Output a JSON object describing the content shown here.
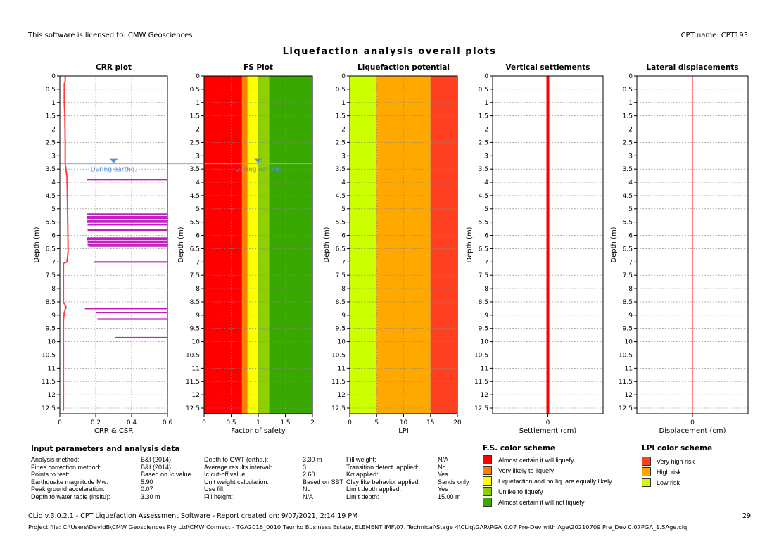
{
  "header": {
    "license": "This software is licensed to: CMW Geosciences",
    "cpt_name": "CPT name: CPT193"
  },
  "title": "Liquefaction analysis overall plots",
  "chart_data": [
    {
      "type": "line",
      "title": "CRR plot",
      "xlabel": "CRR & CSR",
      "ylabel": "Depth (m)",
      "xlim": [
        0,
        0.6
      ],
      "ylim": [
        0,
        12.5
      ],
      "xticks": [
        "0",
        "0.2",
        "0.4",
        "0.6"
      ],
      "grid": true,
      "water_table": {
        "depth": 3.3,
        "label": "During earthq."
      },
      "series": [
        {
          "name": "CSR",
          "color": "#ff4040",
          "points": [
            [
              0.03,
              0
            ],
            [
              0.03,
              0.2
            ],
            [
              0.025,
              0.3
            ],
            [
              0.025,
              1
            ],
            [
              0.028,
              1.5
            ],
            [
              0.03,
              2.5
            ],
            [
              0.03,
              3.3
            ],
            [
              0.04,
              3.8
            ],
            [
              0.042,
              4.5
            ],
            [
              0.044,
              5.5
            ],
            [
              0.046,
              6.6
            ],
            [
              0.04,
              7.0
            ],
            [
              0.02,
              7.05
            ],
            [
              0.02,
              8.5
            ],
            [
              0.035,
              8.7
            ],
            [
              0.025,
              8.9
            ],
            [
              0.02,
              9.2
            ],
            [
              0.02,
              12.6
            ]
          ]
        },
        {
          "name": "CRR",
          "color": "#c020c0",
          "segments": [
            [
              3.9,
              0.15
            ],
            [
              5.2,
              0.15
            ],
            [
              5.3,
              0.15
            ],
            [
              5.35,
              0.15
            ],
            [
              5.45,
              0.15
            ],
            [
              5.5,
              0.15
            ],
            [
              5.6,
              0.155
            ],
            [
              5.8,
              0.155
            ],
            [
              6.1,
              0.15
            ],
            [
              6.15,
              0.15
            ],
            [
              6.25,
              0.155
            ],
            [
              6.35,
              0.155
            ],
            [
              6.4,
              0.16
            ],
            [
              7.0,
              0.19
            ],
            [
              8.75,
              0.14
            ],
            [
              8.9,
              0.2
            ],
            [
              9.15,
              0.21
            ],
            [
              9.85,
              0.31
            ]
          ]
        }
      ]
    },
    {
      "type": "bar",
      "title": "FS Plot",
      "xlabel": "Factor of safety",
      "ylabel": "Depth (m)",
      "xlim": [
        0,
        2
      ],
      "ylim": [
        0,
        12.5
      ],
      "xticks": [
        "0",
        "0.5",
        "1",
        "1.5",
        "2"
      ],
      "grid": true,
      "water_table": {
        "depth": 3.3,
        "label": "During earthq."
      },
      "bands": [
        {
          "from": 0,
          "to": 0.7,
          "color": "#ff0000"
        },
        {
          "from": 0.7,
          "to": 0.8,
          "color": "#ff8000"
        },
        {
          "from": 0.8,
          "to": 1.0,
          "color": "#ffff00"
        },
        {
          "from": 1.0,
          "to": 1.2,
          "color": "#90d000"
        },
        {
          "from": 1.2,
          "to": 2.0,
          "color": "#38a800"
        }
      ]
    },
    {
      "type": "bar",
      "title": "Liquefaction potential",
      "xlabel": "LPI",
      "ylabel": "Depth (m)",
      "xlim": [
        0,
        20
      ],
      "ylim": [
        0,
        12.5
      ],
      "xticks": [
        "0",
        "5",
        "10",
        "15",
        "20"
      ],
      "grid": true,
      "bands": [
        {
          "from": 0,
          "to": 5,
          "color": "#ccff00"
        },
        {
          "from": 5,
          "to": 15,
          "color": "#ffa800"
        },
        {
          "from": 15,
          "to": 20,
          "color": "#ff4020"
        }
      ]
    },
    {
      "type": "line",
      "title": "Vertical settlements",
      "xlabel": "Settlement (cm)",
      "ylabel": "Depth (m)",
      "xlim": [
        -1,
        1
      ],
      "ylim": [
        0,
        12.5
      ],
      "xticks": [
        "0"
      ],
      "grid": true,
      "series": [
        {
          "name": "Settlement",
          "color": "#ff0000",
          "value": 0,
          "width": 4
        }
      ]
    },
    {
      "type": "line",
      "title": "Lateral displacements",
      "xlabel": "Displacement (cm)",
      "ylabel": "Depth (m)",
      "xlim": [
        -1,
        1
      ],
      "ylim": [
        0,
        12.5
      ],
      "xticks": [
        "0"
      ],
      "grid": true,
      "series": [
        {
          "name": "Displacement",
          "color": "#ff6060",
          "value": 0,
          "width": 1.5
        }
      ]
    }
  ],
  "yticks": [
    "0",
    "0.5",
    "1",
    "1.5",
    "2",
    "2.5",
    "3",
    "3.5",
    "4",
    "4.5",
    "5",
    "5.5",
    "6",
    "6.5",
    "7",
    "7.5",
    "8",
    "8.5",
    "9",
    "9.5",
    "10",
    "10.5",
    "11",
    "11.5",
    "12",
    "12.5"
  ],
  "params": {
    "title": "Input parameters and analysis data",
    "col1": [
      [
        "Analysis method:",
        "B&I (2014)"
      ],
      [
        "Fines correction method:",
        "B&I (2014)"
      ],
      [
        "Points to test:",
        "Based on Ic value"
      ],
      [
        "Earthquake magnitude Mw:",
        "5.90"
      ],
      [
        "Peak ground acceleration:",
        "0.07"
      ],
      [
        "Depth to water table (insitu):",
        "3.30 m"
      ]
    ],
    "col2": [
      [
        "Depth to GWT (erthq.):",
        "3.30 m"
      ],
      [
        "Average results interval:",
        "3"
      ],
      [
        "Ic cut-off value:",
        "2.60"
      ],
      [
        "Unit weight calculation:",
        "Based on SBT"
      ],
      [
        "Use fill:",
        "No"
      ],
      [
        "Fill height:",
        "N/A"
      ]
    ],
    "col3": [
      [
        "Fill weight:",
        "N/A"
      ],
      [
        "Transition detect. applied:",
        "No"
      ],
      [
        "Kσ applied:",
        "Yes"
      ],
      [
        "Clay like behavior applied:",
        "Sands only"
      ],
      [
        "Limit depth applied:",
        "Yes"
      ],
      [
        "Limit depth:",
        "15.00 m"
      ]
    ]
  },
  "fs_scheme": {
    "title": "F.S. color scheme",
    "items": [
      {
        "color": "#ff0000",
        "label": "Almost certain it will liquefy"
      },
      {
        "color": "#ff8000",
        "label": "Very likely to liquefy"
      },
      {
        "color": "#ffff00",
        "label": "Liquefaction and no liq. are equally likely"
      },
      {
        "color": "#90d000",
        "label": "Unlike to liquefy"
      },
      {
        "color": "#38a800",
        "label": "Almost certain it will not liquefy"
      }
    ]
  },
  "lpi_scheme": {
    "title": "LPI color scheme",
    "items": [
      {
        "color": "#ff4020",
        "label": "Very high risk"
      },
      {
        "color": "#ffa800",
        "label": "High risk"
      },
      {
        "color": "#ccff00",
        "label": "Low risk"
      }
    ]
  },
  "footer": {
    "line1": "CLiq v.3.0.2.1 - CPT Liquefaction Assessment Software - Report created on: 9/07/2021, 2:14:19 PM",
    "page": "29",
    "line2": "Project file: C:\\Users\\DavidB\\CMW Geosciences Pty Ltd\\CMW Connect - TGA2016_0010 Tauriko Business Estate, ELEMENT IMF\\07. Technical\\Stage 4\\CLiq\\GAR\\PGA 0.07 Pre-Dev with Age\\20210709 Pre_Dev 0.07PGA_1.SAge.clq"
  }
}
